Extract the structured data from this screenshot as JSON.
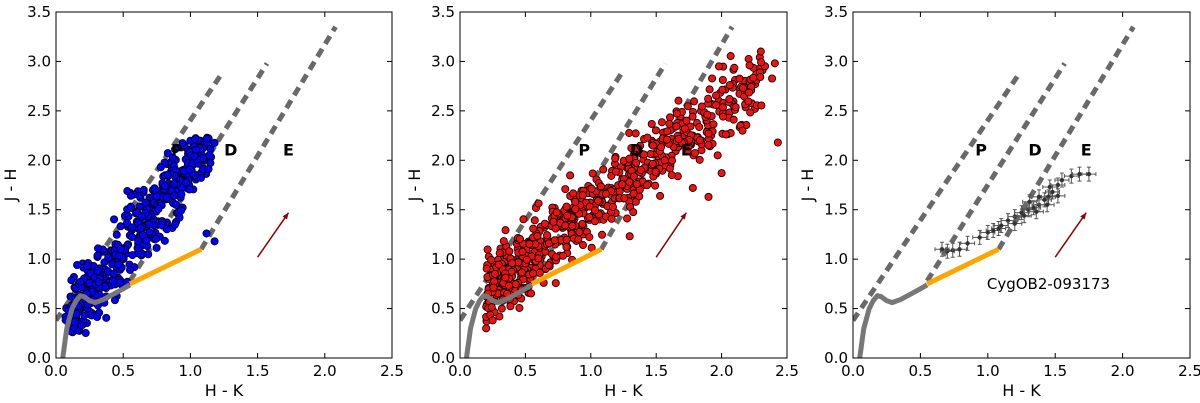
{
  "chart_data": [
    {
      "type": "scatter",
      "panel": "left",
      "xlabel": "H - K",
      "ylabel": "J - H",
      "xlim": [
        0.0,
        2.5
      ],
      "ylim": [
        0.0,
        3.5
      ],
      "xticks": [
        "0.0",
        "0.5",
        "1.0",
        "1.5",
        "2.0",
        "2.5"
      ],
      "yticks": [
        "0.0",
        "0.5",
        "1.0",
        "1.5",
        "2.0",
        "2.5",
        "3.0",
        "3.5"
      ],
      "region_labels": [
        {
          "text": "P",
          "x": 0.9,
          "y": 2.05
        },
        {
          "text": "D",
          "x": 1.3,
          "y": 2.05
        },
        {
          "text": "E",
          "x": 1.73,
          "y": 2.05
        }
      ],
      "points_color": "#0000ff",
      "points_stroke": "#000000",
      "points_summary": {
        "count": 520,
        "x_range": [
          0.07,
          1.2
        ],
        "y_range": [
          0.25,
          2.25
        ],
        "fit_slope": 1.75,
        "fit_intercept": 0.22
      },
      "outliers": [
        [
          0.78,
          1.93
        ],
        [
          1.03,
          2.04
        ],
        [
          0.88,
          1.76
        ],
        [
          0.88,
          1.64
        ],
        [
          1.12,
          1.26
        ],
        [
          1.18,
          1.18
        ],
        [
          0.93,
          1.49
        ]
      ]
    },
    {
      "type": "scatter",
      "panel": "middle",
      "xlabel": "H - K",
      "ylabel": "J - H",
      "xlim": [
        0.0,
        2.5
      ],
      "ylim": [
        0.0,
        3.5
      ],
      "xticks": [
        "0.0",
        "0.5",
        "1.0",
        "1.5",
        "2.0",
        "2.5"
      ],
      "yticks": [
        "0.0",
        "0.5",
        "1.0",
        "1.5",
        "2.0",
        "2.5",
        "3.0",
        "3.5"
      ],
      "region_labels": [
        {
          "text": "P",
          "x": 0.95,
          "y": 2.05
        },
        {
          "text": "D",
          "x": 1.35,
          "y": 2.05
        },
        {
          "text": "E",
          "x": 1.73,
          "y": 2.05
        }
      ],
      "points_color": "#ee1111",
      "points_stroke": "#000000",
      "points_summary": {
        "count": 720,
        "x_range": [
          0.2,
          2.45
        ],
        "y_range": [
          0.3,
          3.1
        ],
        "fit_slope": 1.05,
        "fit_intercept": 0.45
      },
      "outliers": [
        [
          2.3,
          3.1
        ],
        [
          2.43,
          2.18
        ],
        [
          1.98,
          2.95
        ],
        [
          2.06,
          2.62
        ],
        [
          2.16,
          2.3
        ],
        [
          1.9,
          2.27
        ],
        [
          1.97,
          2.05
        ],
        [
          2.0,
          1.87
        ],
        [
          0.25,
          0.38
        ],
        [
          0.2,
          0.3
        ],
        [
          0.32,
          0.5
        ],
        [
          1.9,
          1.63
        ],
        [
          1.78,
          1.72
        ],
        [
          1.6,
          2.37
        ],
        [
          1.72,
          2.32
        ]
      ]
    },
    {
      "type": "scatter",
      "panel": "right",
      "xlabel": "H - K",
      "ylabel": "J - H",
      "xlim": [
        0.0,
        2.5
      ],
      "ylim": [
        0.0,
        3.5
      ],
      "xticks": [
        "0.0",
        "0.5",
        "1.0",
        "1.5",
        "2.0",
        "2.5"
      ],
      "yticks": [
        "0.0",
        "0.5",
        "1.0",
        "1.5",
        "2.0",
        "2.5",
        "3.0",
        "3.5"
      ],
      "region_labels": [
        {
          "text": "P",
          "x": 0.95,
          "y": 2.05
        },
        {
          "text": "D",
          "x": 1.35,
          "y": 2.05
        },
        {
          "text": "E",
          "x": 1.73,
          "y": 2.05
        }
      ],
      "annotation": {
        "text": "CygOB2-093173",
        "x": 1.45,
        "y": 0.75
      },
      "points_color": "#333333",
      "points": [
        [
          0.66,
          1.1
        ],
        [
          0.7,
          1.08
        ],
        [
          0.74,
          1.09
        ],
        [
          0.79,
          1.1
        ],
        [
          0.85,
          1.16
        ],
        [
          0.94,
          1.22
        ],
        [
          1.0,
          1.27
        ],
        [
          1.04,
          1.29
        ],
        [
          1.1,
          1.34
        ],
        [
          1.15,
          1.39
        ],
        [
          1.2,
          1.43
        ],
        [
          1.25,
          1.47
        ],
        [
          1.3,
          1.5
        ],
        [
          1.34,
          1.52
        ],
        [
          1.38,
          1.55
        ],
        [
          1.42,
          1.6
        ],
        [
          1.45,
          1.63
        ],
        [
          1.48,
          1.68
        ],
        [
          1.52,
          1.75
        ],
        [
          1.55,
          1.8
        ],
        [
          1.62,
          1.84
        ],
        [
          1.68,
          1.86
        ],
        [
          1.75,
          1.86
        ],
        [
          1.31,
          1.58
        ],
        [
          1.38,
          1.63
        ],
        [
          1.36,
          1.48
        ],
        [
          1.44,
          1.55
        ],
        [
          1.08,
          1.31
        ],
        [
          1.2,
          1.36
        ],
        [
          1.27,
          1.44
        ],
        [
          1.46,
          1.73
        ],
        [
          1.52,
          1.64
        ]
      ]
    }
  ],
  "overlays": {
    "reddening_lines": [
      {
        "from": [
          0.0,
          0.38
        ],
        "to": [
          1.23,
          2.87
        ]
      },
      {
        "from": [
          0.55,
          0.78
        ],
        "to": [
          1.57,
          2.98
        ]
      },
      {
        "from": [
          1.08,
          1.1
        ],
        "to": [
          2.08,
          3.35
        ]
      }
    ],
    "ttauri_locus": {
      "from": [
        0.55,
        0.75
      ],
      "to": [
        1.08,
        1.1
      ]
    },
    "main_sequence": [
      [
        0.05,
        0.0
      ],
      [
        0.06,
        0.1
      ],
      [
        0.07,
        0.2
      ],
      [
        0.08,
        0.3
      ],
      [
        0.1,
        0.4
      ],
      [
        0.12,
        0.5
      ],
      [
        0.15,
        0.58
      ],
      [
        0.18,
        0.63
      ],
      [
        0.21,
        0.62
      ],
      [
        0.25,
        0.58
      ],
      [
        0.29,
        0.56
      ],
      [
        0.35,
        0.59
      ],
      [
        0.42,
        0.64
      ],
      [
        0.5,
        0.7
      ],
      [
        0.55,
        0.74
      ]
    ],
    "extinction_vector": {
      "from": [
        1.5,
        1.02
      ],
      "to": [
        1.73,
        1.47
      ]
    },
    "colors": {
      "reddening": "#696969",
      "ttauri": "#ffa500",
      "main_sequence": "#777777",
      "vector": "#8b0000"
    }
  }
}
